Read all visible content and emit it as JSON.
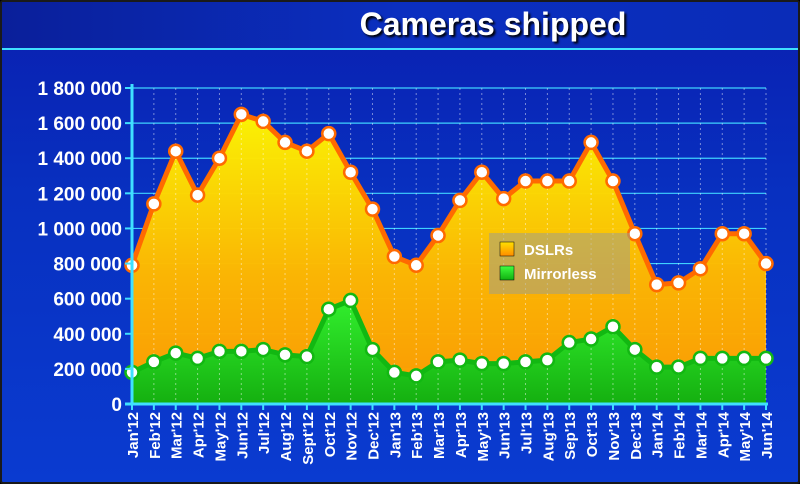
{
  "chart_data": {
    "type": "area",
    "title": "Cameras shipped",
    "xlabel": "",
    "ylabel": "",
    "ylim": [
      0,
      1800000
    ],
    "yticks": [
      0,
      200000,
      400000,
      600000,
      800000,
      1000000,
      1200000,
      1400000,
      1600000,
      1800000
    ],
    "ytick_labels": [
      "0",
      "200 000",
      "400 000",
      "600 000",
      "800 000",
      "1 000 000",
      "1 200 000",
      "1 400 000",
      "1 600 000",
      "1 800 000"
    ],
    "categories": [
      "Jan'12",
      "Feb'12",
      "Mar'12",
      "Apr'12",
      "May'12",
      "Jun'12",
      "Jul'12",
      "Aug'12",
      "Sept'12",
      "Oct'12",
      "Nov'12",
      "Dec'12",
      "Jan'13",
      "Feb'13",
      "Mar'13",
      "Apr'13",
      "May'13",
      "Jun'13",
      "Jul'13",
      "Aug'13",
      "Sep'13",
      "Oct'13",
      "Nov'13",
      "Dec'13",
      "Jan'14",
      "Feb'14",
      "Mar'14",
      "Apr'14",
      "May'14",
      "Jun'14"
    ],
    "series": [
      {
        "name": "DSLRs",
        "color": "#ff8c00",
        "values": [
          790000,
          1140000,
          1440000,
          1190000,
          1400000,
          1650000,
          1610000,
          1490000,
          1440000,
          1540000,
          1320000,
          1110000,
          840000,
          790000,
          960000,
          1160000,
          1320000,
          1170000,
          1270000,
          1270000,
          1270000,
          1490000,
          1270000,
          970000,
          680000,
          690000,
          770000,
          970000,
          970000,
          800000
        ]
      },
      {
        "name": "Mirrorless",
        "color": "#19d219",
        "values": [
          180000,
          240000,
          290000,
          260000,
          300000,
          300000,
          310000,
          280000,
          270000,
          540000,
          590000,
          310000,
          180000,
          160000,
          240000,
          250000,
          230000,
          230000,
          240000,
          250000,
          350000,
          370000,
          440000,
          310000,
          210000,
          210000,
          260000,
          260000,
          260000,
          260000
        ]
      }
    ],
    "grid": true,
    "legend_position": "center-right"
  }
}
